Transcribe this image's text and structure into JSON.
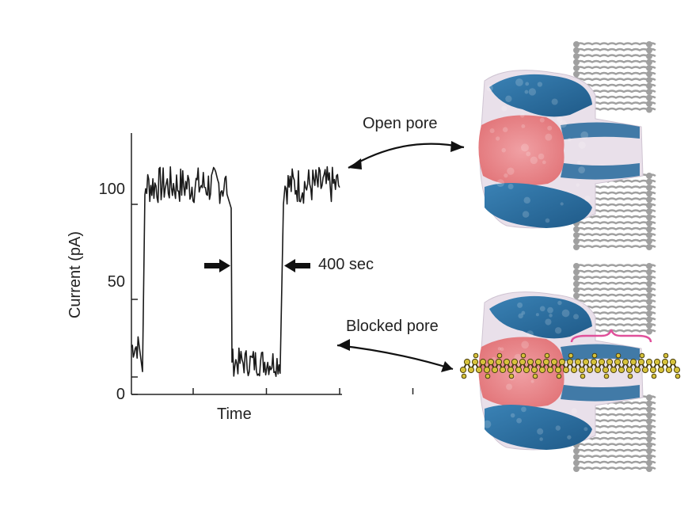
{
  "chart_data": {
    "type": "line",
    "title": "",
    "xlabel": "Time",
    "ylabel": "Current (pA)",
    "y_ticks": [
      "0",
      "50",
      "100"
    ],
    "ylim": [
      0,
      125
    ],
    "x_tick_count": 4,
    "series": [
      {
        "segments": [
          {
            "state": "open",
            "approx_current": 110
          },
          {
            "state": "blocked",
            "approx_current": 17
          },
          {
            "state": "open",
            "approx_current": 110
          }
        ]
      }
    ],
    "annotation": "400 sec"
  },
  "labels": {
    "open_pore": "Open pore",
    "blocked_pore": "Blocked pore"
  },
  "colors": {
    "protein_blue": "#2f6fa0",
    "protein_red": "#e8878c",
    "protein_light": "#e9e0ea",
    "lipid": "#a0a0a0",
    "peptide": "#d6c23a",
    "bracket": "#e0509a"
  }
}
